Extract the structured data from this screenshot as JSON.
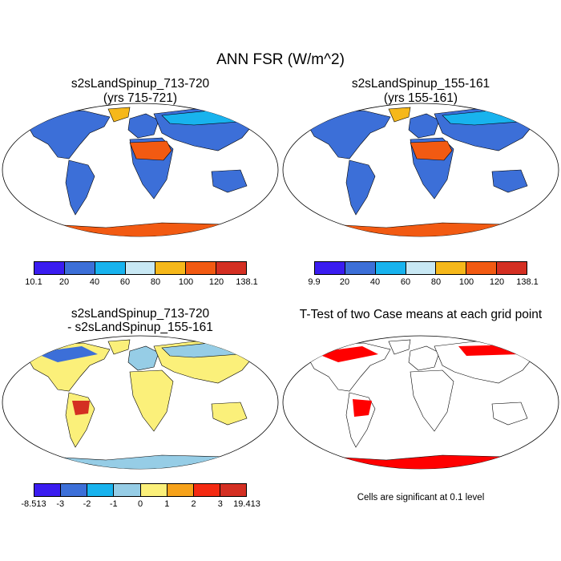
{
  "figure": {
    "title": "ANN FSR (W/m^2)"
  },
  "panels": [
    {
      "title_line1": "s2sLandSpinup_713-720",
      "title_line2": "(yrs 715-721)"
    },
    {
      "title_line1": "s2sLandSpinup_155-161",
      "title_line2": "(yrs 155-161)"
    },
    {
      "title_line1": "s2sLandSpinup_713-720",
      "title_line2": "- s2sLandSpinup_155-161"
    },
    {
      "title_line1": "T-Test of two Case means at each grid point"
    }
  ],
  "colorbars": [
    {
      "colors": [
        "#3a1cf0",
        "#3c6fd8",
        "#18b3ee",
        "#c8e8f4",
        "#f6b81a",
        "#f25a12",
        "#d42f22"
      ],
      "labels": [
        "10.1",
        "20",
        "40",
        "60",
        "80",
        "100",
        "120",
        "138.1"
      ]
    },
    {
      "colors": [
        "#3a1cf0",
        "#3c6fd8",
        "#18b3ee",
        "#c8e8f4",
        "#f6b81a",
        "#f25a12",
        "#d42f22"
      ],
      "labels": [
        "9.9",
        "20",
        "40",
        "60",
        "80",
        "100",
        "120",
        "138.1"
      ]
    },
    {
      "colors": [
        "#3a1cf0",
        "#3c6fd8",
        "#18b3ee",
        "#96cde6",
        "#fbf07a",
        "#f6a21a",
        "#f42a12",
        "#d42f22"
      ],
      "labels": [
        "-8.513",
        "-3",
        "-2",
        "-1",
        "0",
        "1",
        "2",
        "3",
        "19.413"
      ]
    }
  ],
  "significance_note": "Cells are significant at 0.1 level",
  "colors": {
    "land_mean": "#3c6fd8",
    "desert": "#f25a12",
    "diff_base": "#fbf07a",
    "diff_cool": "#96cde6",
    "ttest": "#ff0000"
  }
}
